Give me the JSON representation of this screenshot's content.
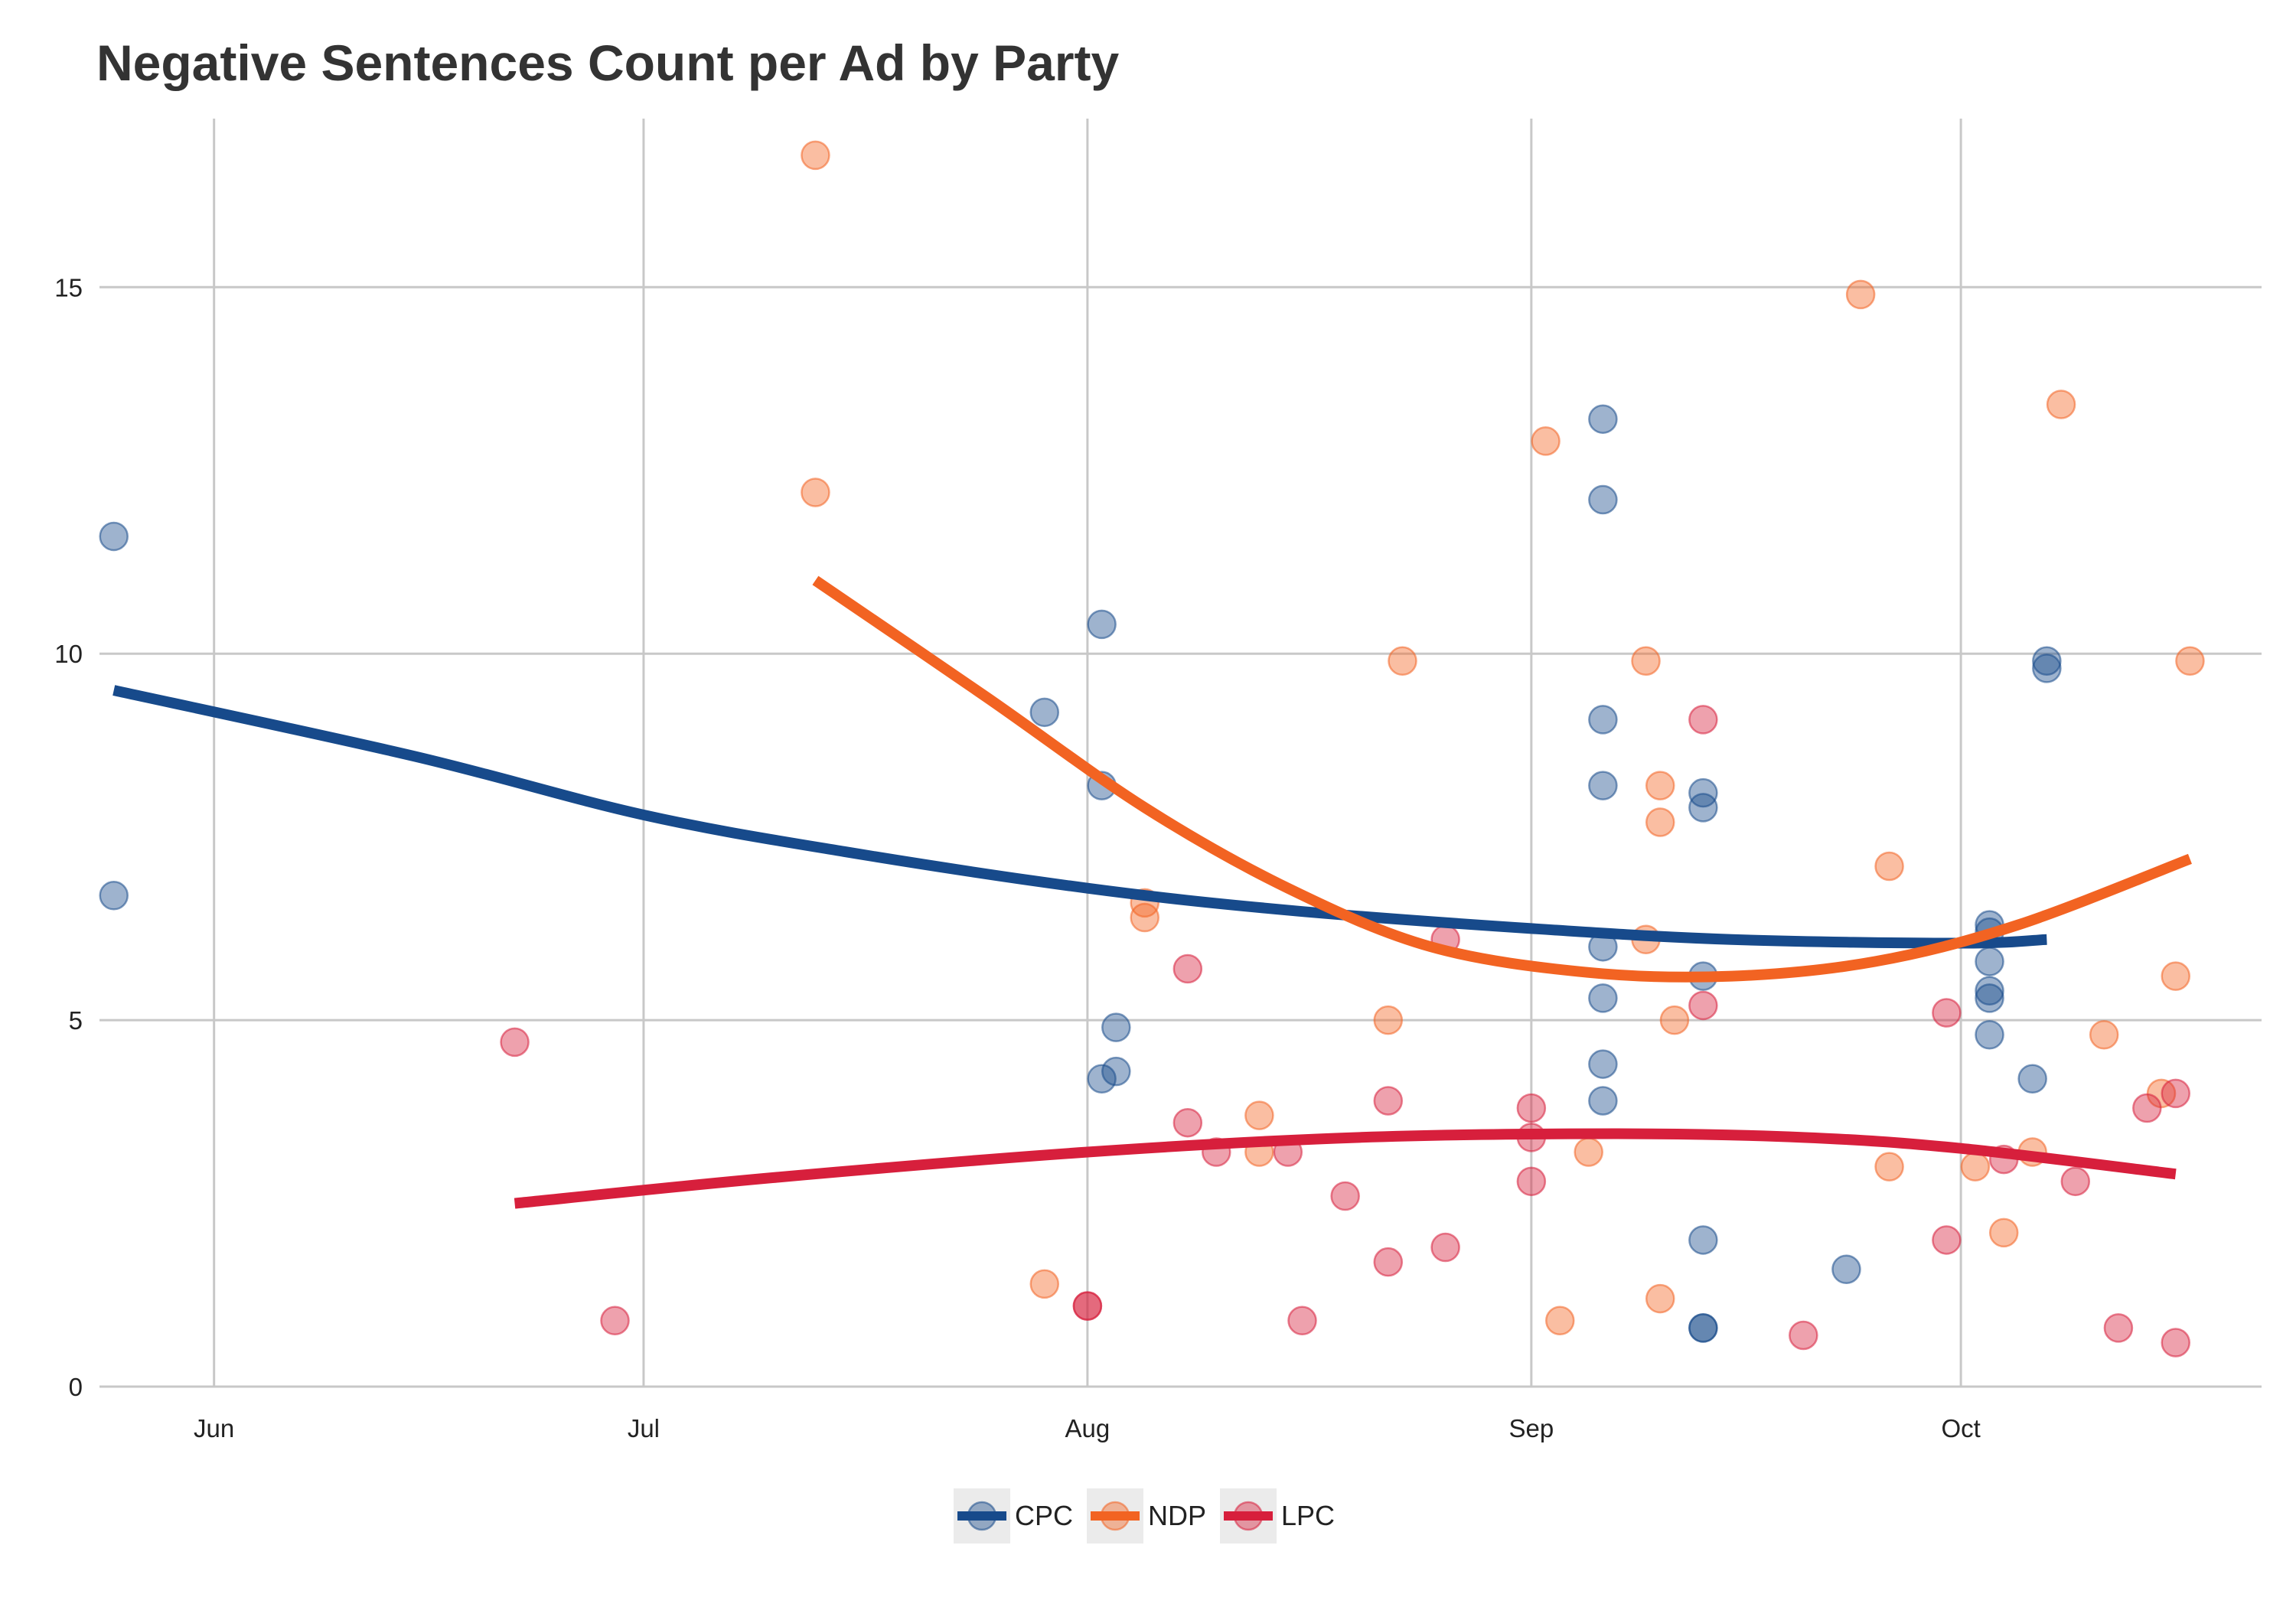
{
  "chart_data": {
    "type": "scatter",
    "title": "Negative Sentences Count per Ad by Party",
    "xlabel": "",
    "ylabel": "",
    "x_type": "date",
    "xlim": [
      "2019-05-24",
      "2019-10-22"
    ],
    "ylim": [
      0,
      17.3
    ],
    "x_ticks": [
      {
        "date": "2019-06-01",
        "label": "Jun"
      },
      {
        "date": "2019-07-01",
        "label": "Jul"
      },
      {
        "date": "2019-08-01",
        "label": "Aug"
      },
      {
        "date": "2019-09-01",
        "label": "Sep"
      },
      {
        "date": "2019-10-01",
        "label": "Oct"
      }
    ],
    "y_ticks": [
      0,
      5,
      10,
      15
    ],
    "grid": true,
    "legend_position": "bottom",
    "series": [
      {
        "name": "CPC",
        "color": "#174a8b",
        "points": [
          [
            "2019-05-25",
            11.6
          ],
          [
            "2019-05-25",
            6.7
          ],
          [
            "2019-07-29",
            9.2
          ],
          [
            "2019-08-02",
            10.4
          ],
          [
            "2019-08-02",
            8.2
          ],
          [
            "2019-08-02",
            4.2
          ],
          [
            "2019-08-03",
            4.3
          ],
          [
            "2019-08-03",
            4.9
          ],
          [
            "2019-09-06",
            13.2
          ],
          [
            "2019-09-06",
            12.1
          ],
          [
            "2019-09-06",
            9.1
          ],
          [
            "2019-09-06",
            8.2
          ],
          [
            "2019-09-06",
            6.0
          ],
          [
            "2019-09-06",
            5.3
          ],
          [
            "2019-09-06",
            4.4
          ],
          [
            "2019-09-06",
            3.9
          ],
          [
            "2019-09-13",
            8.1
          ],
          [
            "2019-09-13",
            7.9
          ],
          [
            "2019-09-13",
            5.6
          ],
          [
            "2019-09-13",
            2.0
          ],
          [
            "2019-09-13",
            0.8
          ],
          [
            "2019-09-13",
            0.8
          ],
          [
            "2019-09-23",
            1.6
          ],
          [
            "2019-10-03",
            6.3
          ],
          [
            "2019-10-03",
            6.2
          ],
          [
            "2019-10-03",
            5.8
          ],
          [
            "2019-10-03",
            5.4
          ],
          [
            "2019-10-03",
            5.3
          ],
          [
            "2019-10-03",
            4.8
          ],
          [
            "2019-10-07",
            9.9
          ],
          [
            "2019-10-07",
            9.8
          ],
          [
            "2019-10-06",
            4.2
          ]
        ],
        "trend": [
          [
            "2019-05-25",
            9.5
          ],
          [
            "2019-06-15",
            8.6
          ],
          [
            "2019-07-01",
            7.8
          ],
          [
            "2019-07-15",
            7.3
          ],
          [
            "2019-08-01",
            6.8
          ],
          [
            "2019-08-15",
            6.5
          ],
          [
            "2019-09-01",
            6.25
          ],
          [
            "2019-09-15",
            6.1
          ],
          [
            "2019-10-01",
            6.05
          ],
          [
            "2019-10-07",
            6.1
          ]
        ]
      },
      {
        "name": "NDP",
        "color": "#f26322",
        "points": [
          [
            "2019-07-13",
            16.8
          ],
          [
            "2019-07-13",
            12.2
          ],
          [
            "2019-07-29",
            1.4
          ],
          [
            "2019-08-05",
            6.6
          ],
          [
            "2019-08-05",
            6.4
          ],
          [
            "2019-08-13",
            3.7
          ],
          [
            "2019-08-13",
            3.2
          ],
          [
            "2019-08-22",
            5.0
          ],
          [
            "2019-08-23",
            9.9
          ],
          [
            "2019-09-02",
            12.9
          ],
          [
            "2019-09-03",
            0.9
          ],
          [
            "2019-09-05",
            3.2
          ],
          [
            "2019-09-09",
            9.9
          ],
          [
            "2019-09-09",
            6.1
          ],
          [
            "2019-09-10",
            8.2
          ],
          [
            "2019-09-10",
            7.7
          ],
          [
            "2019-09-10",
            1.2
          ],
          [
            "2019-09-11",
            5.0
          ],
          [
            "2019-09-24",
            14.9
          ],
          [
            "2019-09-26",
            7.1
          ],
          [
            "2019-09-26",
            3.0
          ],
          [
            "2019-10-02",
            3.0
          ],
          [
            "2019-10-04",
            2.1
          ],
          [
            "2019-10-06",
            3.2
          ],
          [
            "2019-10-08",
            13.4
          ],
          [
            "2019-10-11",
            4.8
          ],
          [
            "2019-10-15",
            4.0
          ],
          [
            "2019-10-16",
            5.6
          ],
          [
            "2019-10-17",
            9.9
          ]
        ],
        "trend": [
          [
            "2019-07-13",
            11.0
          ],
          [
            "2019-07-25",
            9.4
          ],
          [
            "2019-08-05",
            7.9
          ],
          [
            "2019-08-15",
            6.8
          ],
          [
            "2019-08-25",
            6.0
          ],
          [
            "2019-09-05",
            5.65
          ],
          [
            "2019-09-15",
            5.6
          ],
          [
            "2019-09-25",
            5.8
          ],
          [
            "2019-10-05",
            6.3
          ],
          [
            "2019-10-17",
            7.2
          ]
        ]
      },
      {
        "name": "LPC",
        "color": "#d71f3c",
        "points": [
          [
            "2019-06-22",
            4.7
          ],
          [
            "2019-06-29",
            0.9
          ],
          [
            "2019-08-01",
            1.1
          ],
          [
            "2019-08-01",
            1.1
          ],
          [
            "2019-08-08",
            5.7
          ],
          [
            "2019-08-08",
            3.6
          ],
          [
            "2019-08-10",
            3.2
          ],
          [
            "2019-08-15",
            3.2
          ],
          [
            "2019-08-16",
            0.9
          ],
          [
            "2019-08-19",
            2.6
          ],
          [
            "2019-08-22",
            3.9
          ],
          [
            "2019-08-22",
            1.7
          ],
          [
            "2019-08-26",
            6.1
          ],
          [
            "2019-08-26",
            1.9
          ],
          [
            "2019-09-01",
            3.8
          ],
          [
            "2019-09-01",
            3.4
          ],
          [
            "2019-09-01",
            2.8
          ],
          [
            "2019-09-13",
            9.1
          ],
          [
            "2019-09-13",
            5.2
          ],
          [
            "2019-09-20",
            0.7
          ],
          [
            "2019-09-30",
            5.1
          ],
          [
            "2019-09-30",
            2.0
          ],
          [
            "2019-10-04",
            3.1
          ],
          [
            "2019-10-09",
            2.8
          ],
          [
            "2019-10-12",
            0.8
          ],
          [
            "2019-10-14",
            3.8
          ],
          [
            "2019-10-16",
            4.0
          ],
          [
            "2019-10-16",
            0.6
          ]
        ],
        "trend": [
          [
            "2019-06-22",
            2.5
          ],
          [
            "2019-07-10",
            2.85
          ],
          [
            "2019-08-01",
            3.2
          ],
          [
            "2019-08-20",
            3.4
          ],
          [
            "2019-09-07",
            3.45
          ],
          [
            "2019-09-20",
            3.4
          ],
          [
            "2019-10-01",
            3.25
          ],
          [
            "2019-10-16",
            2.9
          ]
        ]
      }
    ]
  }
}
